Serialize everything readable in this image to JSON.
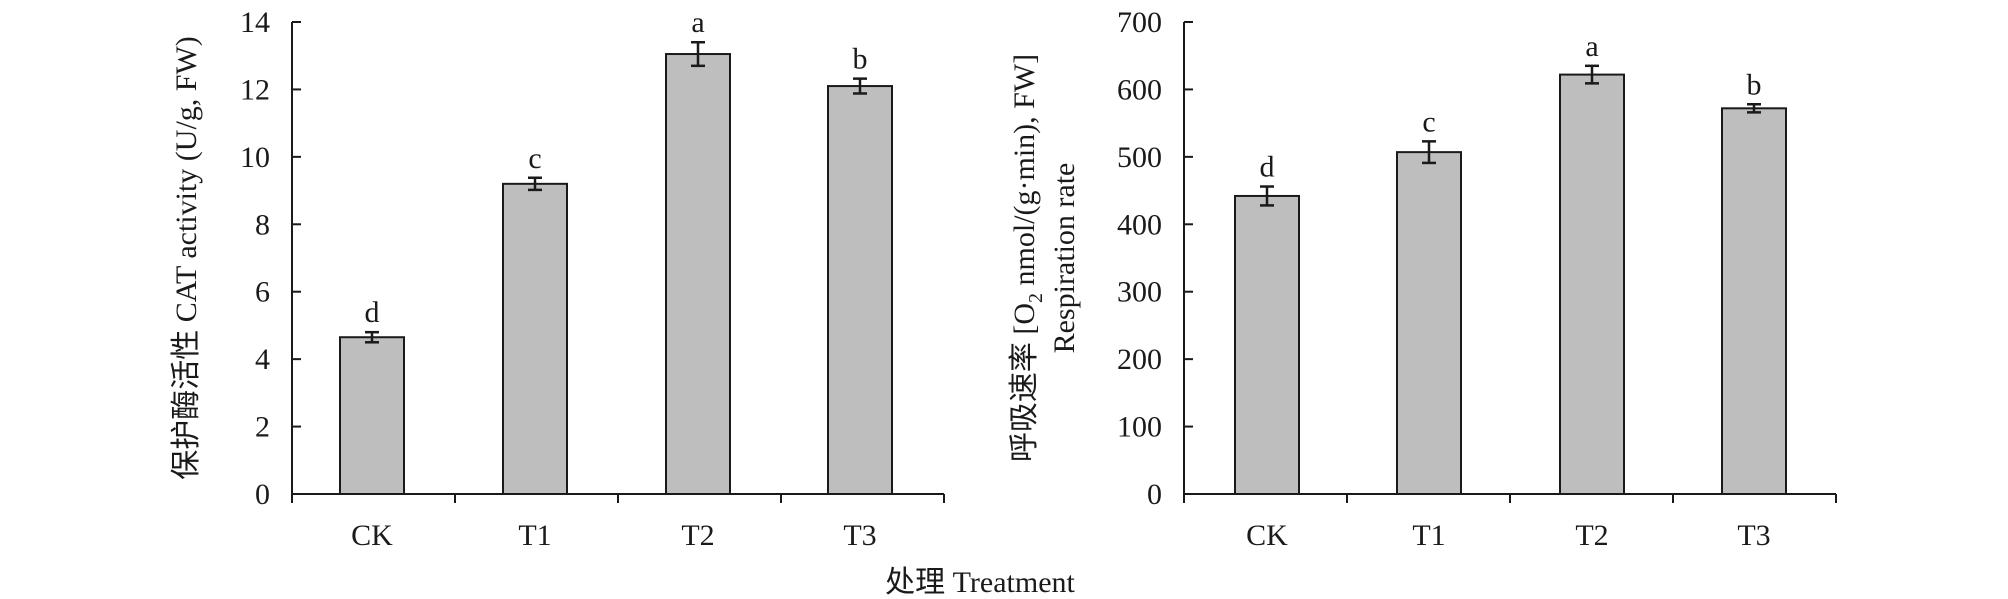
{
  "chart_data": [
    {
      "type": "bar",
      "categories": [
        "CK",
        "T1",
        "T2",
        "T3"
      ],
      "values": [
        4.65,
        9.2,
        13.05,
        12.1
      ],
      "errors": [
        0.15,
        0.18,
        0.35,
        0.22
      ],
      "significance": [
        "d",
        "c",
        "a",
        "b"
      ],
      "ylabel": "保护酶活性 CAT activity (U/g, FW)",
      "ylim": [
        0,
        14
      ],
      "yticks": [
        0,
        2,
        4,
        6,
        8,
        10,
        12,
        14
      ],
      "colors": {
        "bar": "#bebebe"
      }
    },
    {
      "type": "bar",
      "categories": [
        "CK",
        "T1",
        "T2",
        "T3"
      ],
      "values": [
        442,
        507,
        622,
        572
      ],
      "errors": [
        14,
        16,
        13,
        6
      ],
      "significance": [
        "d",
        "c",
        "a",
        "b"
      ],
      "ylabel_main": "呼吸速率 [O",
      "ylabel_sub": "2",
      "ylabel_tail": " nmol/(g·min), FW]",
      "ylabel2": "Respiration rate",
      "ylim": [
        0,
        700
      ],
      "yticks": [
        0,
        100,
        200,
        300,
        400,
        500,
        600,
        700
      ],
      "colors": {
        "bar": "#bebebe"
      }
    }
  ],
  "shared": {
    "xlabel": "处理 Treatment"
  }
}
